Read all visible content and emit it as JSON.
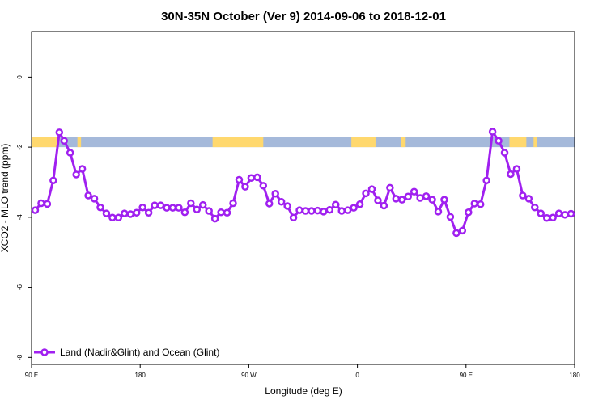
{
  "chart_data": {
    "type": "line",
    "title": "30N-35N October (Ver 9)   2014-09-06 to 2018-12-01",
    "xlabel": "Longitude (deg E)",
    "ylabel": "XCO2 - MLO trend (ppm)",
    "xlim": [
      90,
      540
    ],
    "ylim": [
      -8.2,
      1.3
    ],
    "x_ticks": [
      {
        "value": 90,
        "label": "90 E"
      },
      {
        "value": 180,
        "label": "180"
      },
      {
        "value": 270,
        "label": "90 W"
      },
      {
        "value": 360,
        "label": "0"
      },
      {
        "value": 450,
        "label": "90 E"
      },
      {
        "value": 540,
        "label": "180"
      }
    ],
    "y_ticks": [
      {
        "value": 0,
        "label": "0"
      },
      {
        "value": -2,
        "label": "-2"
      },
      {
        "value": -4,
        "label": "-4"
      },
      {
        "value": -6,
        "label": "-6"
      },
      {
        "value": -8,
        "label": "-8"
      }
    ],
    "grid": false,
    "legend_position": "bottom-left",
    "surface_band": {
      "y_top": -1.72,
      "y_bottom": -2.0,
      "land_color": "#FFD86E",
      "ocean_color": "#A5B9DA",
      "land_segments": [
        [
          90,
          112
        ],
        [
          128,
          131
        ],
        [
          240,
          282
        ],
        [
          355,
          375
        ],
        [
          396,
          400
        ],
        [
          486,
          500
        ],
        [
          506,
          509
        ]
      ]
    },
    "series": [
      {
        "name": "Land (Nadir&Glint) and Ocean (Glint)",
        "color": "#A020F0",
        "x": [
          93,
          98,
          103,
          108,
          113,
          117,
          122,
          127,
          132,
          137,
          142,
          147,
          152,
          157,
          162,
          167,
          172,
          177,
          182,
          187,
          192,
          197,
          202,
          207,
          212,
          217,
          222,
          227,
          232,
          237,
          242,
          247,
          252,
          257,
          262,
          267,
          272,
          277,
          282,
          287,
          292,
          297,
          302,
          307,
          312,
          317,
          322,
          327,
          332,
          337,
          342,
          347,
          352,
          357,
          362,
          367,
          372,
          377,
          382,
          387,
          392,
          397,
          402,
          407,
          412,
          417,
          422,
          427,
          432,
          437,
          442,
          447,
          452,
          457,
          462,
          467,
          472,
          477,
          482,
          487,
          492,
          497,
          502,
          507,
          512,
          517,
          522,
          527,
          532,
          537
        ],
        "y": [
          -3.8,
          -3.6,
          -3.62,
          -2.95,
          -1.58,
          -1.82,
          -2.16,
          -2.78,
          -2.62,
          -3.38,
          -3.47,
          -3.72,
          -3.89,
          -4.01,
          -4.01,
          -3.89,
          -3.91,
          -3.87,
          -3.72,
          -3.87,
          -3.66,
          -3.66,
          -3.73,
          -3.73,
          -3.73,
          -3.86,
          -3.6,
          -3.78,
          -3.65,
          -3.82,
          -4.04,
          -3.86,
          -3.87,
          -3.6,
          -2.93,
          -3.13,
          -2.88,
          -2.86,
          -3.1,
          -3.61,
          -3.33,
          -3.56,
          -3.68,
          -4.01,
          -3.8,
          -3.82,
          -3.82,
          -3.81,
          -3.84,
          -3.79,
          -3.64,
          -3.82,
          -3.8,
          -3.73,
          -3.63,
          -3.32,
          -3.2,
          -3.52,
          -3.67,
          -3.16,
          -3.47,
          -3.5,
          -3.41,
          -3.27,
          -3.45,
          -3.4,
          -3.5,
          -3.84,
          -3.5,
          -3.99,
          -4.45,
          -4.38,
          -3.86,
          -3.61,
          -3.63,
          -2.95,
          -1.56,
          -1.82,
          -2.16,
          -2.77,
          -2.62,
          -3.38,
          -3.47,
          -3.72,
          -3.89,
          -4.02,
          -4.01,
          -3.89,
          -3.93,
          -3.9
        ]
      }
    ]
  }
}
